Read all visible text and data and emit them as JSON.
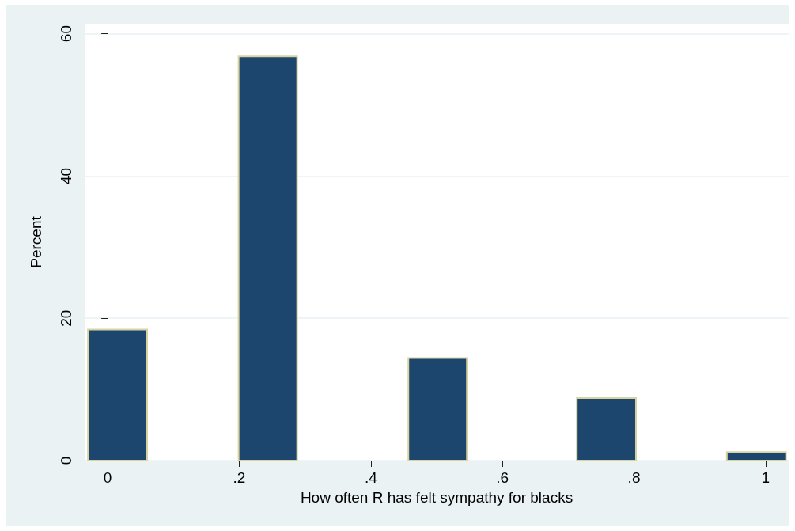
{
  "chart_data": {
    "type": "histogram",
    "xlabel": "How often R has felt sympathy for blacks",
    "ylabel": "Percent",
    "bins": [
      -0.03,
      0.06,
      0.199,
      0.288,
      0.457,
      0.546,
      0.713,
      0.803,
      0.941,
      1.031
    ],
    "values": [
      18.4,
      0,
      56.8,
      0,
      14.4,
      0,
      8.8,
      0,
      1.2
    ],
    "color": "#1c466d",
    "xlim": [
      -0.035,
      1.035
    ],
    "xticks": [
      0,
      {
        "value": 0.2,
        "label": ".2"
      },
      {
        "value": 0.4,
        "label": ".4"
      },
      {
        "value": 0.6,
        "label": ".6"
      },
      {
        "value": 0.8,
        "label": ".8"
      },
      1
    ],
    "ylim": [
      0,
      61.4
    ],
    "yticks": [
      0,
      20,
      40,
      60
    ],
    "grid": "y"
  }
}
